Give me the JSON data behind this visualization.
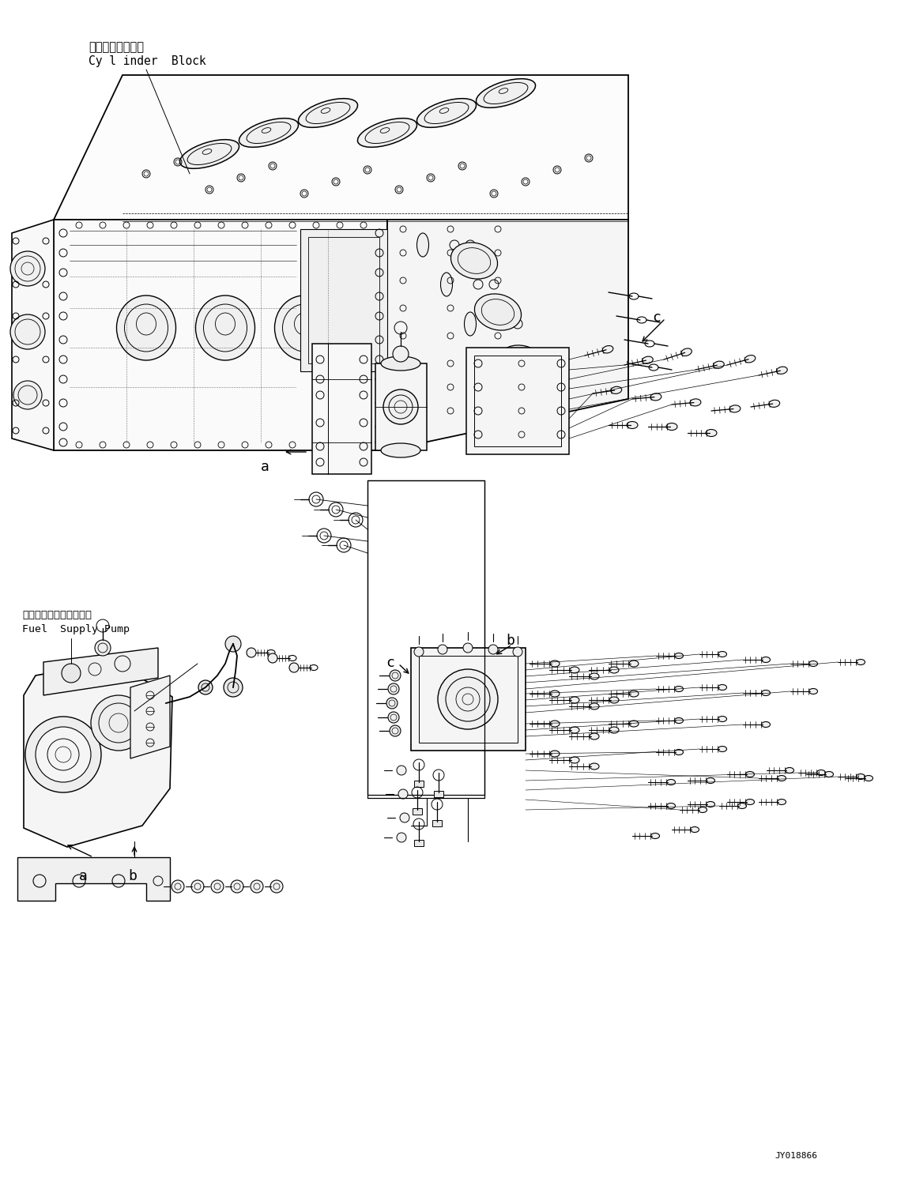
{
  "figure_width": 11.35,
  "figure_height": 14.91,
  "dpi": 100,
  "bg_color": "#ffffff",
  "title_jp": "シリンダブロック",
  "title_en": "Cy l inder  Block",
  "pump_label_jp": "フェエルサプライポンプ",
  "pump_label_en": "Fuel  Supply Pump",
  "footer_text": "JY018866",
  "line_color": "#000000"
}
